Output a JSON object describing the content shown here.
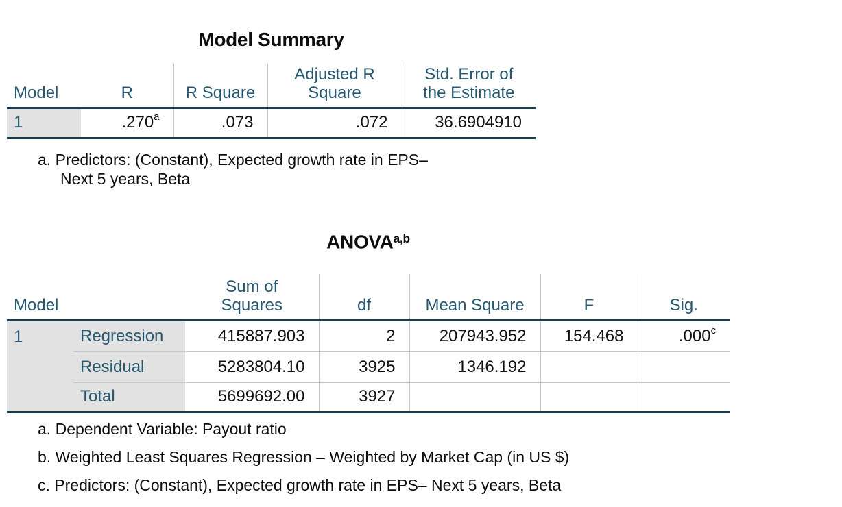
{
  "colors": {
    "header_text": "#26586F",
    "row_label_text": "#26586F",
    "row_label_background": "#E2E2E2",
    "heavy_rule": "#1C3C4E",
    "light_rule": "#C6C6C6",
    "body_text": "#121212",
    "page_background": "#FFFFFF"
  },
  "model_summary": {
    "title": "Model Summary",
    "header": {
      "model": "Model",
      "cols": [
        [
          "R"
        ],
        [
          "R Square"
        ],
        [
          "Adjusted R",
          "Square"
        ],
        [
          "Std. Error of",
          "the Estimate"
        ]
      ]
    },
    "rows": [
      {
        "label": "1",
        "values": [
          {
            "v": ".270",
            "sup": "a"
          },
          {
            "v": ".073"
          },
          {
            "v": ".072"
          },
          {
            "v": "36.6904910"
          }
        ]
      }
    ],
    "footnotes": [
      {
        "marker": "a.",
        "lines": [
          "Predictors: (Constant), Expected growth rate in EPS–",
          "Next 5 years, Beta"
        ]
      }
    ]
  },
  "anova": {
    "title": {
      "text": "ANOVA",
      "sup": "a,b"
    },
    "header": {
      "model": "Model",
      "cols": [
        [
          "Sum of",
          "Squares"
        ],
        [
          "df"
        ],
        [
          "Mean Square"
        ],
        [
          "F"
        ],
        [
          "Sig."
        ]
      ]
    },
    "model_number": "1",
    "rows": [
      {
        "label": "Regression",
        "values": [
          {
            "v": "415887.903"
          },
          {
            "v": "2"
          },
          {
            "v": "207943.952"
          },
          {
            "v": "154.468"
          },
          {
            "v": ".000",
            "sup": "c"
          }
        ]
      },
      {
        "label": "Residual",
        "values": [
          {
            "v": "5283804.10"
          },
          {
            "v": "3925"
          },
          {
            "v": "1346.192"
          },
          {
            "v": ""
          },
          {
            "v": ""
          }
        ]
      },
      {
        "label": "Total",
        "values": [
          {
            "v": "5699692.00"
          },
          {
            "v": "3927"
          },
          {
            "v": ""
          },
          {
            "v": ""
          },
          {
            "v": ""
          }
        ]
      }
    ],
    "footnotes": [
      {
        "marker": "a.",
        "lines": [
          "Dependent Variable: Payout ratio"
        ]
      },
      {
        "marker": "b.",
        "lines": [
          "Weighted Least Squares Regression – Weighted by Market Cap (in US $)"
        ]
      },
      {
        "marker": "c.",
        "lines": [
          "Predictors: (Constant), Expected growth rate in EPS– Next 5 years, Beta"
        ]
      }
    ]
  }
}
